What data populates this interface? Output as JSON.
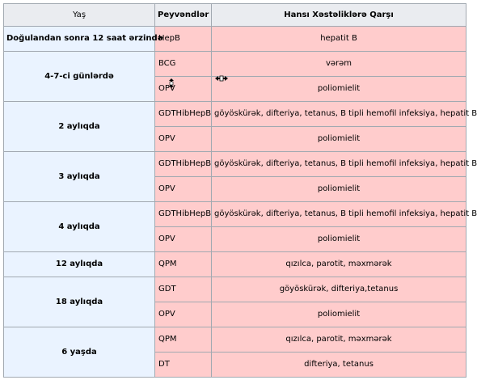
{
  "table": {
    "headers": {
      "age": "Yaş",
      "vaccines": "Peyvəndlər",
      "diseases": "Hansı Xəstəliklərə Qarşı"
    },
    "groups": [
      {
        "age": "Doğulandan sonra 12 saat ərzində",
        "rows": [
          {
            "vaccine": "HepB",
            "disease": "hepatit B"
          }
        ]
      },
      {
        "age": "4-7-ci günlərdə",
        "rows": [
          {
            "vaccine": "BCG",
            "disease": "vərəm"
          },
          {
            "vaccine": "OPV",
            "disease": "poliomielit"
          }
        ]
      },
      {
        "age": "2 aylıqda",
        "rows": [
          {
            "vaccine": "GDTHibHepB",
            "disease": "göyöskürək, difteriya, tetanus, B tipli hemofil infeksiya, hepatit B"
          },
          {
            "vaccine": "OPV",
            "disease": "poliomielit"
          }
        ]
      },
      {
        "age": "3 aylıqda",
        "rows": [
          {
            "vaccine": "GDTHibHepB",
            "disease": "göyöskürək, difteriya, tetanus, B tipli hemofil infeksiya, hepatit B"
          },
          {
            "vaccine": "OPV",
            "disease": "poliomielit"
          }
        ]
      },
      {
        "age": "4 aylıqda",
        "rows": [
          {
            "vaccine": "GDTHibHepB",
            "disease": "göyöskürək, difteriya, tetanus, B tipli hemofil infeksiya, hepatit B"
          },
          {
            "vaccine": "OPV",
            "disease": "poliomielit"
          }
        ]
      },
      {
        "age": "12 aylıqda",
        "rows": [
          {
            "vaccine": "QPM",
            "disease": "qızılca, parotit, məxmərək"
          }
        ]
      },
      {
        "age": "18 aylıqda",
        "rows": [
          {
            "vaccine": "GDT",
            "disease": "göyöskürək, difteriya,tetanus"
          },
          {
            "vaccine": "OPV",
            "disease": "poliomielit"
          }
        ]
      },
      {
        "age": "6 yaşda",
        "rows": [
          {
            "vaccine": "QPM",
            "disease": "qızılca, parotit, məxmərək"
          },
          {
            "vaccine": "DT",
            "disease": "difteriya, tetanus"
          }
        ]
      }
    ]
  },
  "cursors": {
    "resize": "resize-horizontal-cursor-icon",
    "move": "move-cursor-icon"
  }
}
